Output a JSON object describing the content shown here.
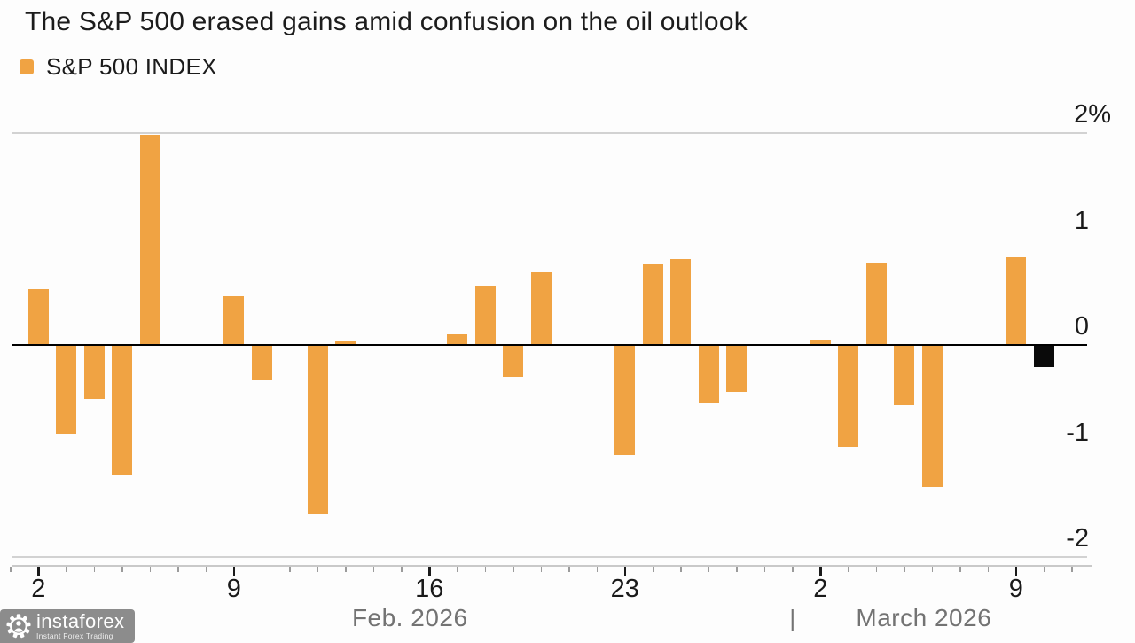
{
  "header": {
    "title": "The S&P 500 erased gains amid confusion on the oil outlook"
  },
  "legend": {
    "label": "S&P 500 INDEX",
    "color": "#F0A343"
  },
  "watermark": {
    "brand": "instaforex",
    "tagline": "Instant Forex Trading"
  },
  "chart_data": {
    "type": "bar",
    "title": "The S&P 500 erased gains amid confusion on the oil outlook",
    "series_name": "S&P 500 INDEX",
    "unit": "percent daily change",
    "bar_color": "#F0A343",
    "highlight_bar_color": "#0A0A0A",
    "grid": true,
    "y_axis": {
      "side": "right",
      "range": [
        -2.3,
        2.25
      ],
      "ticks": [
        {
          "label": "2%",
          "value": 2
        },
        {
          "label": "1",
          "value": 1
        },
        {
          "label": "0",
          "value": 0
        },
        {
          "label": "-1",
          "value": -1
        },
        {
          "label": "-2",
          "value": -2
        }
      ]
    },
    "x_axis": {
      "start_date": "Feb 1 2026",
      "end_date": "Mar 11 2026",
      "major_ticks": [
        {
          "label": "2",
          "day_index": 1
        },
        {
          "label": "9",
          "day_index": 8
        },
        {
          "label": "16",
          "day_index": 15
        },
        {
          "label": "23",
          "day_index": 22
        },
        {
          "label": "2",
          "day_index": 29
        },
        {
          "label": "9",
          "day_index": 36
        }
      ],
      "month_labels": [
        {
          "label": "Feb. 2026",
          "center_day_index": 14.3
        },
        {
          "label": "March 2026",
          "center_day_index": 32.7
        }
      ],
      "month_separator": {
        "label": "|",
        "day_index": 28
      }
    },
    "bars": [
      {
        "date": "Feb 2",
        "day_index": 1,
        "value": 0.53
      },
      {
        "date": "Feb 3",
        "day_index": 2,
        "value": -0.84
      },
      {
        "date": "Feb 4",
        "day_index": 3,
        "value": -0.51
      },
      {
        "date": "Feb 5",
        "day_index": 4,
        "value": -1.23
      },
      {
        "date": "Feb 6",
        "day_index": 5,
        "value": 1.98
      },
      {
        "date": "Feb 9",
        "day_index": 8,
        "value": 0.46
      },
      {
        "date": "Feb 10",
        "day_index": 9,
        "value": -0.33
      },
      {
        "date": "Feb 12",
        "day_index": 11,
        "value": -1.59
      },
      {
        "date": "Feb 13",
        "day_index": 12,
        "value": 0.04
      },
      {
        "date": "Feb 17",
        "day_index": 16,
        "value": 0.1
      },
      {
        "date": "Feb 18",
        "day_index": 17,
        "value": 0.55
      },
      {
        "date": "Feb 19",
        "day_index": 18,
        "value": -0.3
      },
      {
        "date": "Feb 20",
        "day_index": 19,
        "value": 0.69
      },
      {
        "date": "Feb 23",
        "day_index": 22,
        "value": -1.04
      },
      {
        "date": "Feb 24",
        "day_index": 23,
        "value": 0.76
      },
      {
        "date": "Feb 25",
        "day_index": 24,
        "value": 0.81
      },
      {
        "date": "Feb 26",
        "day_index": 25,
        "value": -0.54
      },
      {
        "date": "Feb 27",
        "day_index": 26,
        "value": -0.44
      },
      {
        "date": "Mar 2",
        "day_index": 29,
        "value": 0.05
      },
      {
        "date": "Mar 3",
        "day_index": 30,
        "value": -0.96
      },
      {
        "date": "Mar 4",
        "day_index": 31,
        "value": 0.77
      },
      {
        "date": "Mar 5",
        "day_index": 32,
        "value": -0.57
      },
      {
        "date": "Mar 6",
        "day_index": 33,
        "value": -1.34
      },
      {
        "date": "Mar 9",
        "day_index": 36,
        "value": 0.83
      },
      {
        "date": "Mar 10",
        "day_index": 37,
        "value": -0.21,
        "highlight": true
      }
    ]
  }
}
